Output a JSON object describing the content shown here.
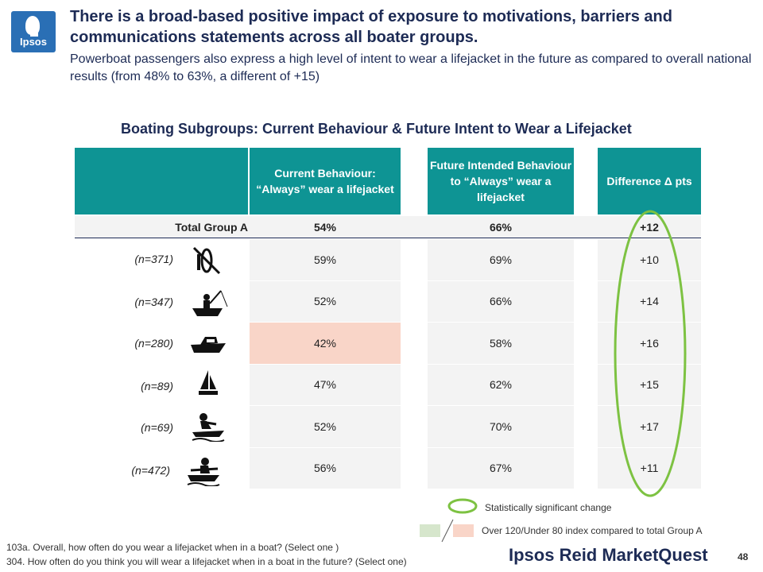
{
  "logo_text": "Ipsos",
  "title": "There is a broad-based positive impact of exposure to motivations, barriers and communications statements across all boater groups.",
  "subtitle": "Powerboat passengers also express a high level of intent to wear a lifejacket in the future as compared to overall national results (from 48% to 63%, a different of +15)",
  "chart_title": "Boating Subgroups: Current Behaviour & Future Intent to Wear a Lifejacket",
  "headers": {
    "current": "Current Behaviour: “Always” wear a lifejacket",
    "future": "Future Intended Behaviour to “Always” wear a lifejacket",
    "difference": "Difference Δ pts"
  },
  "total": {
    "label": "Total Group A",
    "current": "54%",
    "future": "66%",
    "difference": "+12"
  },
  "rows": [
    {
      "n": "(n=371)",
      "icon": "paddle-no-icon",
      "current": "59%",
      "future": "69%",
      "difference": "+10"
    },
    {
      "n": "(n=347)",
      "icon": "fishing-boat-icon",
      "current": "52%",
      "future": "66%",
      "difference": "+14"
    },
    {
      "n": "(n=280)",
      "icon": "powerboat-icon",
      "current": "42%",
      "future": "58%",
      "difference": "+16"
    },
    {
      "n": "(n=89)",
      "icon": "sailboat-icon",
      "current": "47%",
      "future": "62%",
      "difference": "+15"
    },
    {
      "n": "(n=69)",
      "icon": "personal-watercraft-icon",
      "current": "52%",
      "future": "70%",
      "difference": "+17"
    },
    {
      "n": "(n=472)",
      "icon": "rowboat-icon",
      "current": "56%",
      "future": "67%",
      "difference": "+11"
    }
  ],
  "highlight_color": "#f9d5c8",
  "header_color": "#0e9494",
  "legend": {
    "significant": "Statistically significant change",
    "index": "Over 120/Under 80 index compared to total Group A"
  },
  "footer": {
    "q1": "103a. Overall, how often do you wear a lifejacket when in a boat? (Select one )",
    "q2": "304. How often do you think you will wear a lifejacket when in a boat in the future? (Select one)"
  },
  "brand": "Ipsos Reid MarketQuest",
  "page_number": "48"
}
